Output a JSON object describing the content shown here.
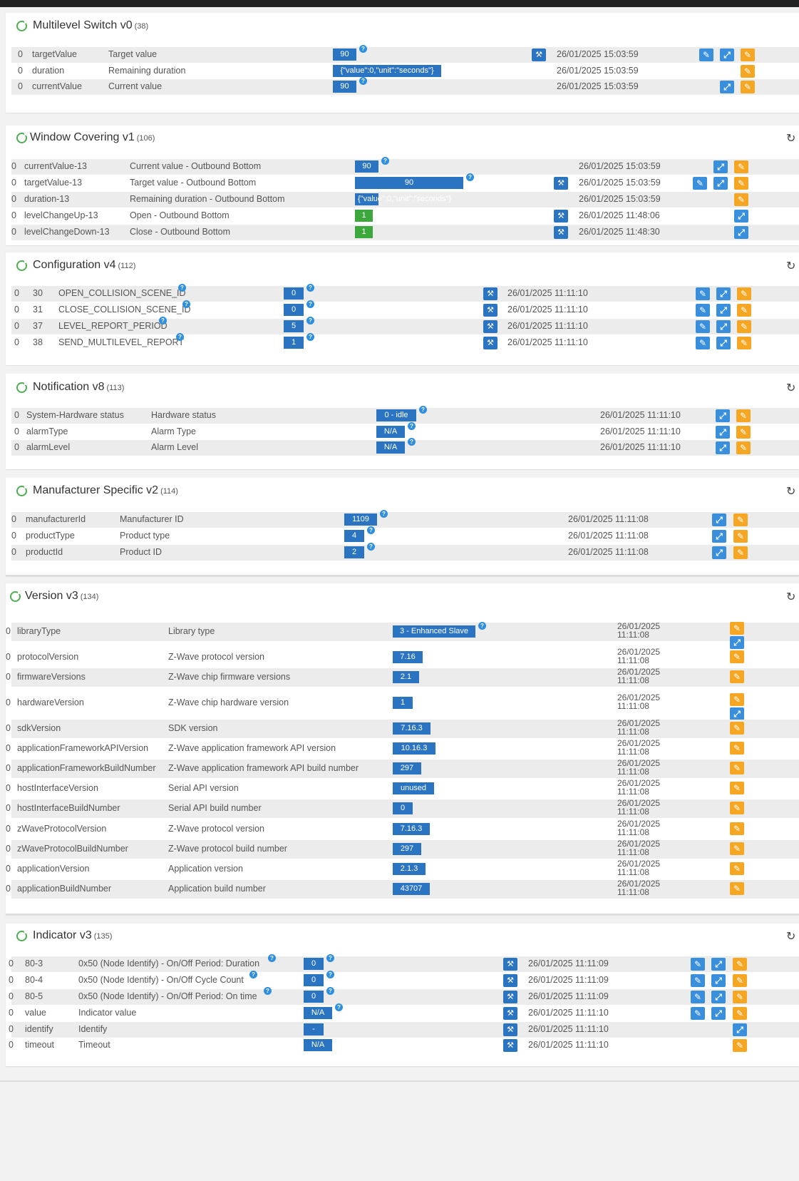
{
  "icons": {
    "ring": "progress-ring-icon",
    "refresh": "refresh-icon",
    "help": "help-icon",
    "wrench": "wrench-icon",
    "edit": "edit-icon",
    "configure": "configure-icon",
    "set": "set-icon"
  },
  "icon_glyphs": {
    "refresh": "↻",
    "help": "?",
    "wrench": "🔧",
    "edit": "✎",
    "configure": "⤢",
    "set": "✱"
  },
  "colors": {
    "badge": "#2b74c2",
    "green": "#3ca83c",
    "orange": "#f5a623",
    "lightblue": "#3a8fdc",
    "ring": "#4caf50"
  },
  "panels": [
    {
      "id": "multilevel-switch",
      "title": "Multilevel Switch v0",
      "count": "(38)",
      "rows": [
        {
          "idx": "0",
          "key": "targetValue",
          "label": "Target value",
          "value": "90",
          "help": true,
          "wrench": true,
          "date": "26/01/2025 15:03:59",
          "btns": [
            "e",
            "c",
            "o"
          ]
        },
        {
          "idx": "0",
          "key": "duration",
          "label": "Remaining duration",
          "value": "{\"value\":0,\"unit\":\"seconds\"}",
          "help": false,
          "wrench": false,
          "date": "26/01/2025 15:03:59",
          "btns": [
            "o"
          ]
        },
        {
          "idx": "0",
          "key": "currentValue",
          "label": "Current value",
          "value": "90",
          "help": true,
          "wrench": false,
          "date": "26/01/2025 15:03:59",
          "btns": [
            "c",
            "o"
          ]
        }
      ]
    },
    {
      "id": "window-covering",
      "title": "Window Covering v1",
      "count": "(106)",
      "rows": [
        {
          "idx": "0",
          "key": "currentValue-13",
          "label": "Current value - Outbound Bottom",
          "value": "90",
          "help": true,
          "wrench": false,
          "date": "26/01/2025 15:03:59",
          "btns": [
            "c",
            "o"
          ]
        },
        {
          "idx": "0",
          "key": "targetValue-13",
          "label": "Target value - Outbound Bottom",
          "value": "90",
          "help": true,
          "wrench": true,
          "date": "26/01/2025 15:03:59",
          "btns": [
            "e",
            "c",
            "o"
          ]
        },
        {
          "idx": "0",
          "key": "duration-13",
          "label": "Remaining duration - Outbound Bottom",
          "value": "{\"value\":0,\"unit\":\"seconds\"}",
          "help": false,
          "wrench": false,
          "date": "26/01/2025 15:03:59",
          "btns": [
            "o"
          ]
        },
        {
          "idx": "0",
          "key": "levelChangeUp-13",
          "label": "Open - Outbound Bottom",
          "value": "1",
          "green": true,
          "help": false,
          "wrench": true,
          "date": "26/01/2025 11:48:06",
          "btns": [
            "c"
          ]
        },
        {
          "idx": "0",
          "key": "levelChangeDown-13",
          "label": "Close - Outbound Bottom",
          "value": "1",
          "green": true,
          "help": false,
          "wrench": true,
          "date": "26/01/2025 11:48:30",
          "btns": [
            "c"
          ]
        }
      ]
    },
    {
      "id": "configuration",
      "title": "Configuration v4",
      "count": "(112)",
      "rows": [
        {
          "idx": "0",
          "num": "30",
          "key": "OPEN_COLLISION_SCENE_ID",
          "value": "0",
          "help": true,
          "wrench": true,
          "date": "26/01/2025 11:11:10",
          "btns": [
            "e",
            "c",
            "o"
          ]
        },
        {
          "idx": "0",
          "num": "31",
          "key": "CLOSE_COLLISION_SCENE_ID",
          "value": "0",
          "help": true,
          "wrench": true,
          "date": "26/01/2025 11:11:10",
          "btns": [
            "e",
            "c",
            "o"
          ]
        },
        {
          "idx": "0",
          "num": "37",
          "key": "LEVEL_REPORT_PERIOD",
          "value": "5",
          "help": true,
          "wrench": true,
          "date": "26/01/2025 11:11:10",
          "btns": [
            "e",
            "c",
            "o"
          ]
        },
        {
          "idx": "0",
          "num": "38",
          "key": "SEND_MULTILEVEL_REPORT",
          "value": "1",
          "help": true,
          "wrench": true,
          "date": "26/01/2025 11:11:10",
          "btns": [
            "e",
            "c",
            "o"
          ]
        }
      ]
    },
    {
      "id": "notification",
      "title": "Notification v8",
      "count": "(113)",
      "rows": [
        {
          "idx": "0",
          "key": "System-Hardware status",
          "label": "Hardware status",
          "value": "0 - idle",
          "help": true,
          "wrench": false,
          "date": "26/01/2025 11:11:10",
          "btns": [
            "c",
            "o"
          ]
        },
        {
          "idx": "0",
          "key": "alarmType",
          "label": "Alarm Type",
          "value": "N/A",
          "help": true,
          "wrench": false,
          "date": "26/01/2025 11:11:10",
          "btns": [
            "c",
            "o"
          ]
        },
        {
          "idx": "0",
          "key": "alarmLevel",
          "label": "Alarm Level",
          "value": "N/A",
          "help": true,
          "wrench": false,
          "date": "26/01/2025 11:11:10",
          "btns": [
            "c",
            "o"
          ]
        }
      ]
    },
    {
      "id": "manufacturer-specific",
      "title": "Manufacturer Specific v2",
      "count": "(114)",
      "rows": [
        {
          "idx": "0",
          "key": "manufacturerId",
          "label": "Manufacturer ID",
          "value": "1109",
          "help": true,
          "wrench": false,
          "date": "26/01/2025 11:11:08",
          "btns": [
            "c",
            "o"
          ]
        },
        {
          "idx": "0",
          "key": "productType",
          "label": "Product type",
          "value": "4",
          "help": true,
          "wrench": false,
          "date": "26/01/2025 11:11:08",
          "btns": [
            "c",
            "o"
          ]
        },
        {
          "idx": "0",
          "key": "productId",
          "label": "Product ID",
          "value": "2",
          "help": true,
          "wrench": false,
          "date": "26/01/2025 11:11:08",
          "btns": [
            "c",
            "o"
          ]
        }
      ]
    },
    {
      "id": "version",
      "title": "Version v3",
      "count": "(134)",
      "rows": [
        {
          "idx": "0",
          "key": "libraryType",
          "label": "Library type",
          "value": "3 - Enhanced Slave",
          "help": true,
          "date1": "26/01/2025",
          "date2": "11:11:08",
          "btns": [
            "o",
            "c"
          ]
        },
        {
          "idx": "0",
          "key": "protocolVersion",
          "label": "Z-Wave protocol version",
          "value": "7.16",
          "date1": "26/01/2025",
          "date2": "11:11:08",
          "btns": [
            "o"
          ]
        },
        {
          "idx": "0",
          "key": "firmwareVersions",
          "label": "Z-Wave chip firmware versions",
          "value": "2.1",
          "date1": "26/01/2025",
          "date2": "11:11:08",
          "btns": [
            "o"
          ]
        },
        {
          "idx": "0",
          "key": "hardwareVersion",
          "label": "Z-Wave chip hardware version",
          "value": "1",
          "date1": "26/01/2025",
          "date2": "11:11:08",
          "btns": [
            "o",
            "c"
          ]
        },
        {
          "idx": "0",
          "key": "sdkVersion",
          "label": "SDK version",
          "value": "7.16.3",
          "date1": "26/01/2025",
          "date2": "11:11:08",
          "btns": [
            "o"
          ]
        },
        {
          "idx": "0",
          "key": "applicationFrameworkAPIVersion",
          "label": "Z-Wave application framework API version",
          "value": "10.16.3",
          "date1": "26/01/2025",
          "date2": "11:11:08",
          "btns": [
            "o"
          ]
        },
        {
          "idx": "0",
          "key": "applicationFrameworkBuildNumber",
          "label": "Z-Wave application framework API build number",
          "value": "297",
          "date1": "26/01/2025",
          "date2": "11:11:08",
          "btns": [
            "o"
          ]
        },
        {
          "idx": "0",
          "key": "hostInterfaceVersion",
          "label": "Serial API version",
          "value": "unused",
          "date1": "26/01/2025",
          "date2": "11:11:08",
          "btns": [
            "o"
          ]
        },
        {
          "idx": "0",
          "key": "hostInterfaceBuildNumber",
          "label": "Serial API build number",
          "value": "0",
          "date1": "26/01/2025",
          "date2": "11:11:08",
          "btns": [
            "o"
          ]
        },
        {
          "idx": "0",
          "key": "zWaveProtocolVersion",
          "label": "Z-Wave protocol version",
          "value": "7.16.3",
          "date1": "26/01/2025",
          "date2": "11:11:08",
          "btns": [
            "o"
          ]
        },
        {
          "idx": "0",
          "key": "zWaveProtocolBuildNumber",
          "label": "Z-Wave protocol build number",
          "value": "297",
          "date1": "26/01/2025",
          "date2": "11:11:08",
          "btns": [
            "o"
          ]
        },
        {
          "idx": "0",
          "key": "applicationVersion",
          "label": "Application version",
          "value": "2.1.3",
          "date1": "26/01/2025",
          "date2": "11:11:08",
          "btns": [
            "o"
          ]
        },
        {
          "idx": "0",
          "key": "applicationBuildNumber",
          "label": "Application build number",
          "value": "43707",
          "date1": "26/01/2025",
          "date2": "11:11:08",
          "btns": [
            "o"
          ]
        }
      ]
    },
    {
      "id": "indicator",
      "title": "Indicator v3",
      "count": "(135)",
      "rows": [
        {
          "idx": "0",
          "key": "80-3",
          "label": "0x50 (Node Identify) - On/Off Period: Duration",
          "value": "0",
          "help": true,
          "wrench": true,
          "date": "26/01/2025 11:11:09",
          "btns": [
            "e",
            "c",
            "o"
          ]
        },
        {
          "idx": "0",
          "key": "80-4",
          "label": "0x50 (Node Identify) - On/Off Cycle Count",
          "value": "0",
          "help": true,
          "wrench": true,
          "date": "26/01/2025 11:11:09",
          "btns": [
            "e",
            "c",
            "o"
          ]
        },
        {
          "idx": "0",
          "key": "80-5",
          "label": "0x50 (Node Identify) - On/Off Period: On time",
          "value": "0",
          "help": true,
          "wrench": true,
          "date": "26/01/2025 11:11:09",
          "btns": [
            "e",
            "c",
            "o"
          ]
        },
        {
          "idx": "0",
          "key": "value",
          "label": "Indicator value",
          "value": "N/A",
          "help": true,
          "wrench": true,
          "date": "26/01/2025 11:11:10",
          "btns": [
            "e",
            "c",
            "o"
          ]
        },
        {
          "idx": "0",
          "key": "identify",
          "label": "Identify",
          "value": "-",
          "help": false,
          "wrench": true,
          "date": "26/01/2025 11:11:10",
          "btns": [
            "c"
          ]
        },
        {
          "idx": "0",
          "key": "timeout",
          "label": "Timeout",
          "value": "N/A",
          "help": false,
          "wrench": true,
          "date": "26/01/2025 11:11:10",
          "btns": [
            "o"
          ]
        }
      ]
    }
  ]
}
